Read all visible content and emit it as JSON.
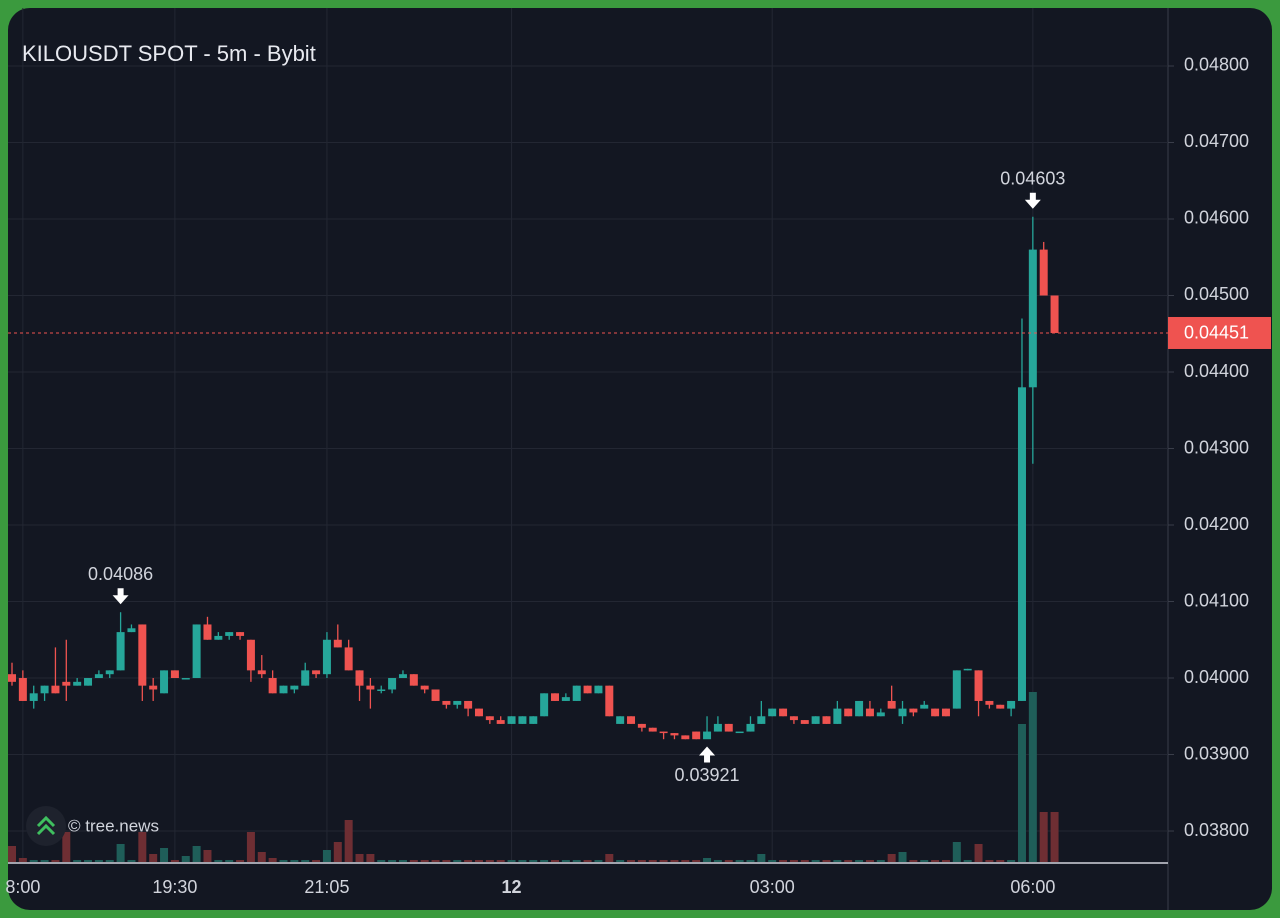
{
  "chart_data": {
    "type": "candlestick",
    "title": "KILOUSDT SPOT - 5m - Bybit",
    "watermark": "© tree.news",
    "categories": [
      null,
      "8:00",
      null,
      null,
      null,
      null,
      null,
      null,
      null,
      null,
      null,
      null,
      null,
      null,
      null,
      "19:30",
      null,
      null,
      null,
      null,
      null,
      null,
      null,
      null,
      null,
      null,
      null,
      null,
      null,
      "21:05",
      null,
      null,
      null,
      null,
      null,
      null,
      null,
      null,
      null,
      null,
      null,
      null,
      null,
      null,
      null,
      null,
      "12",
      null,
      null,
      null,
      null,
      null,
      null,
      null,
      null,
      null,
      null,
      null,
      null,
      null,
      null,
      null,
      null,
      null,
      null,
      null,
      null,
      null,
      null,
      null,
      "03:00",
      null,
      null,
      null,
      null,
      null,
      null,
      null,
      null,
      null,
      null,
      null,
      null,
      null,
      null,
      null,
      null,
      null,
      null,
      null,
      null,
      null,
      null,
      null,
      "06:00",
      null,
      null
    ],
    "open": [
      0.04005,
      0.04,
      0.0397,
      0.0398,
      0.0399,
      0.03995,
      0.0399,
      0.0399,
      0.04,
      0.04005,
      0.0401,
      0.0406,
      0.0407,
      0.0399,
      0.0398,
      0.0401,
      0.04,
      0.04,
      0.0407,
      0.0405,
      0.04055,
      0.0406,
      0.0405,
      0.0401,
      0.04,
      0.0398,
      0.03985,
      0.0399,
      0.0401,
      0.04005,
      0.0405,
      0.0404,
      0.0401,
      0.0399,
      0.03985,
      0.03985,
      0.04,
      0.04005,
      0.0399,
      0.03985,
      0.0397,
      0.03965,
      0.0397,
      0.0396,
      0.0395,
      0.03945,
      0.0394,
      0.0394,
      0.0394,
      0.0395,
      0.0398,
      0.0397,
      0.0397,
      0.0399,
      0.0398,
      0.0399,
      0.0394,
      0.0395,
      0.0394,
      0.03935,
      0.0393,
      0.03928,
      0.03925,
      0.0393,
      0.0392,
      0.0393,
      0.0394,
      0.0393,
      0.0393,
      0.0394,
      0.0395,
      0.0396,
      0.0395,
      0.03945,
      0.0394,
      0.0395,
      0.0394,
      0.0396,
      0.0395,
      0.0396,
      0.0395,
      0.0397,
      0.0395,
      0.0396,
      0.0396,
      0.0396,
      0.0396,
      0.0396,
      0.0401,
      0.0401,
      0.0397,
      0.03965,
      0.0396,
      0.0397,
      0.0438,
      0.0456,
      0.045
    ],
    "high": [
      0.0402,
      0.0401,
      0.0399,
      0.0399,
      0.0404,
      0.0405,
      0.04,
      0.04,
      0.0401,
      0.0401,
      0.04086,
      0.0407,
      0.0407,
      0.04,
      0.0401,
      0.0401,
      0.04,
      0.0407,
      0.0408,
      0.0406,
      0.0406,
      0.0406,
      0.0405,
      0.0403,
      0.0401,
      0.0399,
      0.0399,
      0.0402,
      0.0401,
      0.0406,
      0.0407,
      0.0405,
      0.0401,
      0.04,
      0.0399,
      0.04,
      0.0401,
      0.04005,
      0.0399,
      0.03985,
      0.0397,
      0.0397,
      0.0397,
      0.0396,
      0.0395,
      0.0395,
      0.0395,
      0.0395,
      0.0395,
      0.0398,
      0.0398,
      0.0398,
      0.0399,
      0.0399,
      0.0399,
      0.0399,
      0.0395,
      0.0395,
      0.0394,
      0.03935,
      0.0393,
      0.03928,
      0.03925,
      0.0393,
      0.0395,
      0.0395,
      0.0394,
      0.0393,
      0.0395,
      0.0397,
      0.0396,
      0.0396,
      0.0395,
      0.03945,
      0.0395,
      0.0395,
      0.0397,
      0.0396,
      0.0397,
      0.0397,
      0.0396,
      0.0399,
      0.0397,
      0.0396,
      0.0397,
      0.0396,
      0.0396,
      0.0401,
      0.04012,
      0.0401,
      0.0397,
      0.03965,
      0.0397,
      0.0447,
      0.04603,
      0.0457,
      0.045
    ],
    "low": [
      0.0399,
      0.0397,
      0.0396,
      0.0397,
      0.0398,
      0.0397,
      0.0399,
      0.0399,
      0.04,
      0.04,
      0.0401,
      0.0406,
      0.0397,
      0.0397,
      0.0398,
      0.04,
      0.04,
      0.04,
      0.0405,
      0.0405,
      0.0405,
      0.0405,
      0.03995,
      0.04,
      0.0398,
      0.0398,
      0.0398,
      0.0399,
      0.04,
      0.04,
      0.0404,
      0.0401,
      0.0397,
      0.0396,
      0.0398,
      0.0398,
      0.04,
      0.0399,
      0.0398,
      0.0397,
      0.0396,
      0.0396,
      0.0395,
      0.0395,
      0.0394,
      0.0394,
      0.0394,
      0.0394,
      0.0394,
      0.0395,
      0.0397,
      0.0397,
      0.0397,
      0.0398,
      0.0398,
      0.0395,
      0.0394,
      0.0394,
      0.0393,
      0.0393,
      0.0392,
      0.0392,
      0.0392,
      0.0392,
      0.03921,
      0.0393,
      0.0393,
      0.0393,
      0.0393,
      0.0394,
      0.0395,
      0.0395,
      0.0394,
      0.0394,
      0.0394,
      0.0394,
      0.0394,
      0.0395,
      0.0395,
      0.0395,
      0.0395,
      0.0396,
      0.0394,
      0.0395,
      0.0396,
      0.0395,
      0.0395,
      0.0396,
      0.0401,
      0.0395,
      0.0396,
      0.0396,
      0.0395,
      0.0397,
      0.0428,
      0.045,
      0.04451
    ],
    "close": [
      0.03995,
      0.0397,
      0.0398,
      0.0399,
      0.0398,
      0.0399,
      0.03995,
      0.04,
      0.04005,
      0.0401,
      0.0406,
      0.04065,
      0.0399,
      0.03985,
      0.0401,
      0.04,
      0.04,
      0.0407,
      0.0405,
      0.04055,
      0.0406,
      0.04055,
      0.0401,
      0.04005,
      0.0398,
      0.0399,
      0.0399,
      0.0401,
      0.04005,
      0.0405,
      0.0404,
      0.0401,
      0.0399,
      0.03985,
      0.03985,
      0.04,
      0.04005,
      0.0399,
      0.03985,
      0.0397,
      0.03965,
      0.0397,
      0.0396,
      0.0395,
      0.03945,
      0.0394,
      0.0395,
      0.0395,
      0.0395,
      0.0398,
      0.0397,
      0.03975,
      0.0399,
      0.0398,
      0.0399,
      0.0395,
      0.0395,
      0.0394,
      0.03935,
      0.0393,
      0.03928,
      0.03925,
      0.0392,
      0.0392,
      0.0393,
      0.0394,
      0.0393,
      0.0393,
      0.0394,
      0.0395,
      0.0396,
      0.0395,
      0.03945,
      0.0394,
      0.0395,
      0.0394,
      0.0396,
      0.0395,
      0.0397,
      0.0395,
      0.03955,
      0.0396,
      0.0396,
      0.03955,
      0.03965,
      0.0395,
      0.0395,
      0.0401,
      0.04012,
      0.0397,
      0.03965,
      0.0396,
      0.0397,
      0.0438,
      0.0456,
      0.045,
      0.04451
    ],
    "volume": [
      16,
      4,
      2,
      2,
      2,
      30,
      2,
      2,
      2,
      2,
      18,
      2,
      30,
      8,
      14,
      2,
      6,
      16,
      12,
      2,
      2,
      2,
      30,
      10,
      4,
      2,
      2,
      2,
      2,
      12,
      20,
      42,
      8,
      8,
      2,
      2,
      2,
      2,
      2,
      2,
      2,
      2,
      2,
      2,
      2,
      2,
      2,
      2,
      2,
      2,
      2,
      2,
      2,
      2,
      2,
      8,
      2,
      2,
      2,
      2,
      2,
      2,
      2,
      2,
      4,
      2,
      2,
      2,
      2,
      8,
      2,
      2,
      2,
      2,
      2,
      2,
      2,
      2,
      2,
      2,
      2,
      8,
      10,
      2,
      2,
      2,
      2,
      20,
      2,
      18,
      2,
      2,
      2,
      138,
      170,
      50,
      50
    ],
    "up_color": "#26a69a",
    "down_color": "#ef5350",
    "last_price": 0.04451,
    "annotations": [
      {
        "value": 0.04086,
        "arrow": "down"
      },
      {
        "value": 0.04603,
        "arrow": "down"
      },
      {
        "value": 0.03921,
        "arrow": "up"
      }
    ],
    "ylim": [
      0.037595,
      0.048758
    ],
    "yticks": [
      {
        "value": 0.038,
        "label": "0.03800"
      },
      {
        "value": 0.039,
        "label": "0.03900"
      },
      {
        "value": 0.04,
        "label": "0.04000"
      },
      {
        "value": 0.041,
        "label": "0.04100"
      },
      {
        "value": 0.042,
        "label": "0.04200"
      },
      {
        "value": 0.043,
        "label": "0.04300"
      },
      {
        "value": 0.044,
        "label": "0.04400"
      },
      {
        "value": 0.045,
        "label": "0.04500"
      },
      {
        "value": 0.046,
        "label": "0.04600"
      },
      {
        "value": 0.047,
        "label": "0.04700"
      },
      {
        "value": 0.048,
        "label": "0.04800"
      }
    ],
    "grid": true
  }
}
